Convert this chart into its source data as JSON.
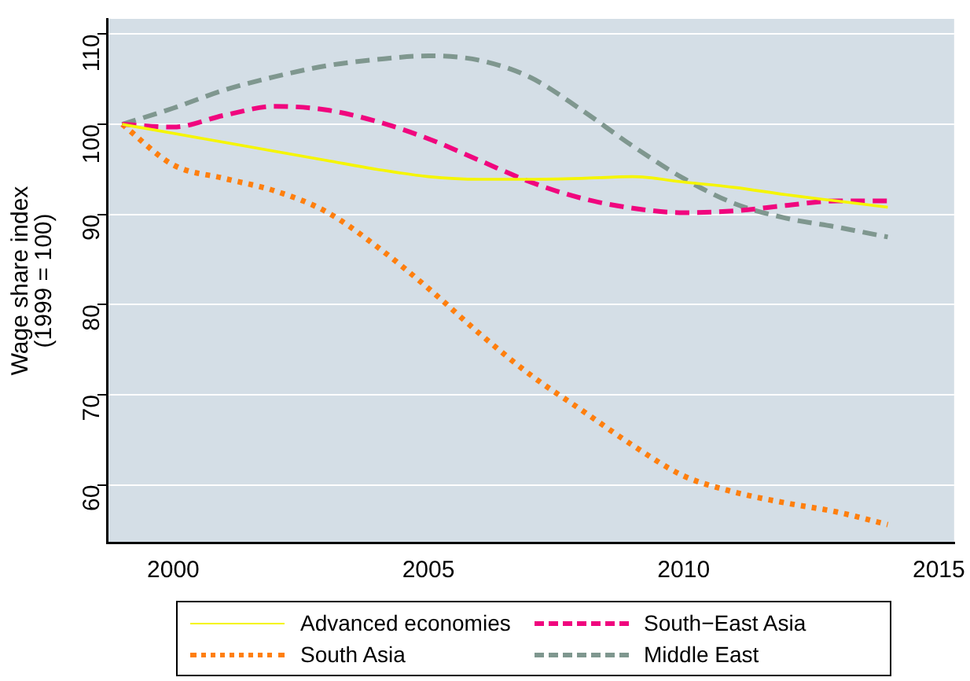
{
  "chart_data": {
    "type": "line",
    "ylabel": "Wage share index\n(1999 = 100)",
    "x": [
      1999,
      2000,
      2001,
      2002,
      2003,
      2004,
      2005,
      2006,
      2007,
      2008,
      2009,
      2010,
      2011,
      2012,
      2013,
      2014
    ],
    "xlim": [
      1998.7,
      2015.3
    ],
    "xticks": [
      2000,
      2005,
      2010,
      2015
    ],
    "ylim": [
      53.6,
      111.7
    ],
    "yticks": [
      60,
      70,
      80,
      90,
      100,
      110
    ],
    "grid": "y",
    "legend": "bottom",
    "marker": "none",
    "series": [
      {
        "name": "Advanced economies",
        "color": "#f5f500",
        "line_style": "solid",
        "values": [
          100,
          99,
          98,
          97,
          96,
          95,
          94.2,
          93.9,
          93.9,
          94,
          94.2,
          93.6,
          93,
          92.2,
          91.5,
          90.8
        ]
      },
      {
        "name": "South−East Asia",
        "color": "#f0067e",
        "line_style": "dashed",
        "values": [
          100,
          99.7,
          101,
          102,
          101.6,
          100.3,
          98.4,
          96,
          93.6,
          91.8,
          90.7,
          90.2,
          90.4,
          91,
          91.5,
          91.5
        ]
      },
      {
        "name": "South Asia",
        "color": "#ff7f0e",
        "line_style": "dotted",
        "values": [
          100,
          95.5,
          94,
          92.6,
          90.3,
          86.4,
          81.8,
          76.8,
          72.2,
          68.3,
          64.4,
          61,
          59.2,
          58,
          57,
          55.6
        ]
      },
      {
        "name": "Middle East",
        "color": "#7f978f",
        "line_style": "dashed",
        "values": [
          100,
          101.8,
          103.8,
          105.3,
          106.5,
          107.2,
          107.6,
          107.1,
          105.2,
          101.6,
          97.6,
          94,
          91.2,
          89.6,
          88.6,
          87.5
        ]
      }
    ]
  }
}
